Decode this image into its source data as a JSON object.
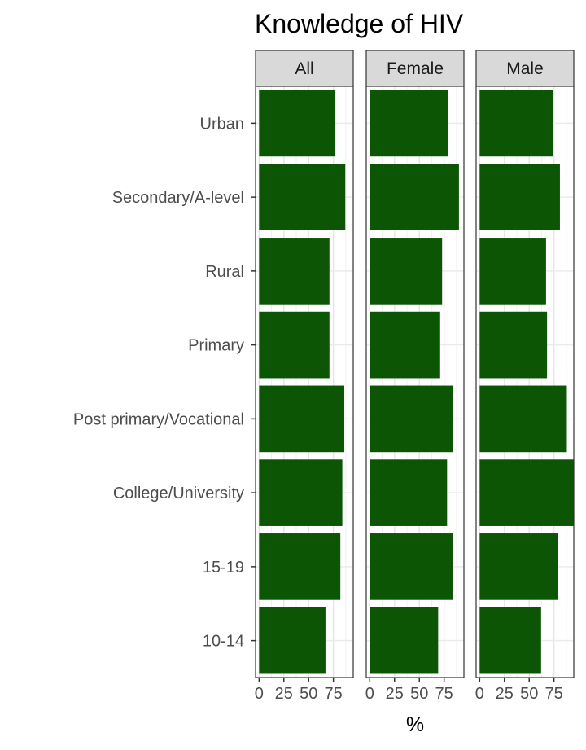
{
  "chart_data": {
    "type": "bar",
    "orientation": "horizontal",
    "title": "Knowledge of HIV",
    "xlabel": "%",
    "ylabel": "",
    "xlim": [
      0,
      95
    ],
    "x_ticks": [
      0,
      25,
      50,
      75
    ],
    "x_tick_labels": [
      "0",
      "25",
      "50",
      "75"
    ],
    "categories": [
      "Urban",
      "Secondary/A-level",
      "Rural",
      "Primary",
      "Post primary/Vocational",
      "College/University",
      "15-19",
      "10-14"
    ],
    "bar_color": "#0b5504",
    "grid": true,
    "facets": [
      {
        "name": "All",
        "values": [
          77,
          87,
          71,
          71,
          86,
          84,
          82,
          67
        ]
      },
      {
        "name": "Female",
        "values": [
          79,
          90,
          73,
          71,
          84,
          78,
          84,
          69
        ]
      },
      {
        "name": "Male",
        "values": [
          74,
          81,
          67,
          68,
          88,
          95,
          79,
          62
        ]
      }
    ]
  }
}
